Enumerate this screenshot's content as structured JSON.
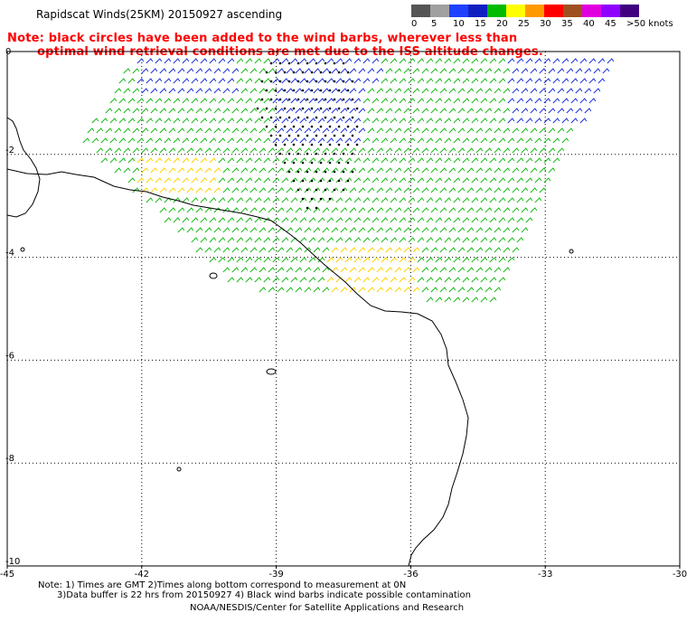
{
  "header": {
    "title": "Rapidscat Winds(25KM) 20150927 ascending",
    "note_line1": "Note: black circles have been added to the wind barbs, wherever less than",
    "note_line2": "optimal wind retrieval conditions are met due to the ISS altitude changes."
  },
  "legend": {
    "labels": [
      "0",
      "5",
      "10",
      "15",
      "20",
      "25",
      "30",
      "35",
      "40",
      "45",
      ">50 knots"
    ],
    "colors": [
      "#555555",
      "#a0a0a0",
      "#2040ff",
      "#1020c0",
      "#00bb00",
      "#ffff00",
      "#ff9900",
      "#ff0000",
      "#a05020",
      "#e000e0",
      "#9000ff",
      "#400080"
    ]
  },
  "map": {
    "lon_ticks": [
      "-45",
      "-42",
      "-39",
      "-36",
      "-33",
      "-30"
    ],
    "lat_ticks": [
      "0",
      "-2",
      "-4",
      "-6",
      "-8",
      "-10"
    ],
    "colors": {
      "coast": "#000000",
      "grid": "#000000",
      "barb_blue": "#1a2fd8",
      "barb_green": "#16b916",
      "barb_yellow": "#ffd000",
      "flag_circle": "#000000"
    }
  },
  "footer": {
    "line1": "Note: 1) Times are GMT 2)Times along bottom correspond to measurement at 0N",
    "line2": "3)Data buffer is 22 hrs from 20150927 4) Black wind barbs indicate possible contamination",
    "line3": "NOAA/NESDIS/Center for Satellite Applications and Research"
  }
}
